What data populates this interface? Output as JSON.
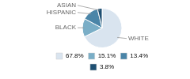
{
  "chart_data": {
    "type": "pie",
    "categories": [
      "WHITE",
      "BLACK",
      "HISPANIC",
      "ASIAN"
    ],
    "values": [
      67.8,
      15.1,
      13.4,
      3.8
    ],
    "value_labels": [
      "67.8%",
      "15.1%",
      "13.4%",
      "3.8%"
    ],
    "colors": [
      "#d9e4ef",
      "#7aaec7",
      "#4a85a8",
      "#1e4f72"
    ],
    "legend": "bottom"
  }
}
